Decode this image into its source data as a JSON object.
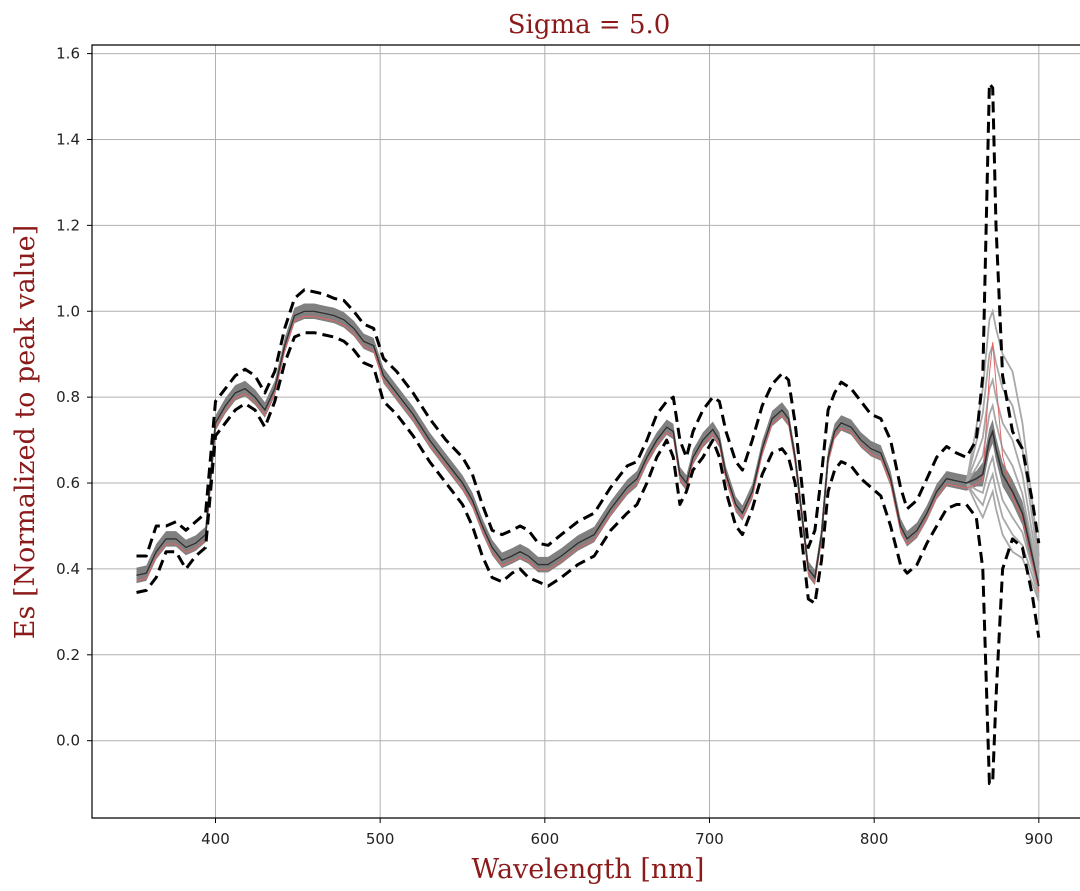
{
  "chart_data": {
    "type": "line",
    "title": "Sigma = 5.0",
    "xlabel": "Wavelength [nm]",
    "ylabel": "Es [Normalized to peak value]",
    "xlim": [
      325,
      925
    ],
    "ylim": [
      -0.18,
      1.62
    ],
    "xticks": [
      400,
      500,
      600,
      700,
      800,
      900
    ],
    "xtick_labels": [
      "400",
      "500",
      "600",
      "700",
      "800",
      "900"
    ],
    "yticks": [
      0.0,
      0.2,
      0.4,
      0.6,
      0.8,
      1.0,
      1.2,
      1.4,
      1.6
    ],
    "ytick_labels": [
      "0.0",
      "0.2",
      "0.4",
      "0.6",
      "0.8",
      "1.0",
      "1.2",
      "1.4",
      "1.6"
    ],
    "grid": true,
    "colors": {
      "band": "#808080",
      "mean": "#333333",
      "bound": "#000000",
      "reference": "#e06666",
      "text_accent": "#8b1a1a"
    },
    "x": [
      352,
      358,
      364,
      370,
      376,
      382,
      388,
      394,
      400,
      406,
      412,
      418,
      424,
      430,
      436,
      442,
      448,
      454,
      460,
      466,
      472,
      478,
      484,
      490,
      496,
      502,
      510,
      520,
      530,
      540,
      550,
      556,
      562,
      568,
      574,
      580,
      585,
      590,
      596,
      602,
      610,
      620,
      630,
      640,
      650,
      656,
      662,
      668,
      674,
      678,
      682,
      686,
      690,
      696,
      702,
      706,
      710,
      716,
      720,
      726,
      732,
      738,
      744,
      748,
      752,
      756,
      760,
      764,
      768,
      772,
      776,
      780,
      786,
      792,
      798,
      804,
      810,
      816,
      820,
      826,
      832,
      838,
      844,
      850,
      856,
      862,
      866,
      870,
      872,
      874,
      878,
      884,
      890,
      896,
      900
    ],
    "series": [
      {
        "role": "mean",
        "values": [
          0.385,
          0.39,
          0.44,
          0.47,
          0.47,
          0.45,
          0.46,
          0.48,
          0.74,
          0.78,
          0.81,
          0.82,
          0.8,
          0.77,
          0.82,
          0.92,
          0.99,
          1.0,
          1.0,
          0.995,
          0.99,
          0.98,
          0.96,
          0.93,
          0.92,
          0.85,
          0.81,
          0.76,
          0.7,
          0.65,
          0.6,
          0.56,
          0.5,
          0.45,
          0.42,
          0.43,
          0.44,
          0.43,
          0.41,
          0.41,
          0.43,
          0.46,
          0.48,
          0.54,
          0.59,
          0.61,
          0.66,
          0.7,
          0.73,
          0.72,
          0.62,
          0.6,
          0.66,
          0.7,
          0.725,
          0.7,
          0.62,
          0.55,
          0.53,
          0.58,
          0.68,
          0.75,
          0.77,
          0.75,
          0.66,
          0.53,
          0.4,
          0.38,
          0.48,
          0.66,
          0.72,
          0.74,
          0.73,
          0.7,
          0.68,
          0.67,
          0.61,
          0.5,
          0.47,
          0.49,
          0.53,
          0.58,
          0.61,
          0.605,
          0.6,
          0.61,
          0.62,
          0.7,
          0.72,
          0.68,
          0.62,
          0.58,
          0.53,
          0.43,
          0.36
        ]
      },
      {
        "role": "upper-bound",
        "values": [
          0.43,
          0.43,
          0.5,
          0.5,
          0.51,
          0.49,
          0.51,
          0.53,
          0.79,
          0.82,
          0.85,
          0.865,
          0.85,
          0.81,
          0.86,
          0.96,
          1.03,
          1.05,
          1.045,
          1.04,
          1.03,
          1.025,
          1.0,
          0.97,
          0.96,
          0.89,
          0.86,
          0.81,
          0.75,
          0.7,
          0.66,
          0.62,
          0.55,
          0.49,
          0.48,
          0.49,
          0.5,
          0.49,
          0.46,
          0.455,
          0.48,
          0.51,
          0.53,
          0.59,
          0.64,
          0.65,
          0.7,
          0.76,
          0.79,
          0.8,
          0.7,
          0.66,
          0.72,
          0.77,
          0.8,
          0.79,
          0.72,
          0.65,
          0.63,
          0.7,
          0.78,
          0.83,
          0.855,
          0.84,
          0.74,
          0.6,
          0.45,
          0.49,
          0.62,
          0.77,
          0.81,
          0.835,
          0.82,
          0.79,
          0.76,
          0.75,
          0.7,
          0.59,
          0.54,
          0.56,
          0.61,
          0.66,
          0.685,
          0.67,
          0.66,
          0.7,
          0.85,
          1.53,
          1.52,
          1.2,
          0.85,
          0.72,
          0.68,
          0.56,
          0.46
        ]
      },
      {
        "role": "lower-bound",
        "values": [
          0.345,
          0.35,
          0.38,
          0.44,
          0.44,
          0.4,
          0.43,
          0.45,
          0.71,
          0.74,
          0.77,
          0.785,
          0.77,
          0.73,
          0.79,
          0.88,
          0.94,
          0.95,
          0.95,
          0.945,
          0.94,
          0.93,
          0.91,
          0.88,
          0.87,
          0.79,
          0.76,
          0.71,
          0.65,
          0.6,
          0.55,
          0.5,
          0.43,
          0.38,
          0.37,
          0.39,
          0.4,
          0.38,
          0.37,
          0.36,
          0.38,
          0.41,
          0.43,
          0.49,
          0.53,
          0.55,
          0.6,
          0.66,
          0.7,
          0.66,
          0.55,
          0.58,
          0.63,
          0.66,
          0.7,
          0.66,
          0.58,
          0.5,
          0.48,
          0.54,
          0.62,
          0.67,
          0.68,
          0.66,
          0.6,
          0.47,
          0.33,
          0.32,
          0.42,
          0.58,
          0.63,
          0.65,
          0.64,
          0.61,
          0.59,
          0.57,
          0.5,
          0.41,
          0.39,
          0.41,
          0.46,
          0.5,
          0.54,
          0.55,
          0.55,
          0.52,
          0.4,
          -0.1,
          -0.095,
          0.1,
          0.4,
          0.47,
          0.45,
          0.34,
          0.24
        ]
      }
    ]
  }
}
